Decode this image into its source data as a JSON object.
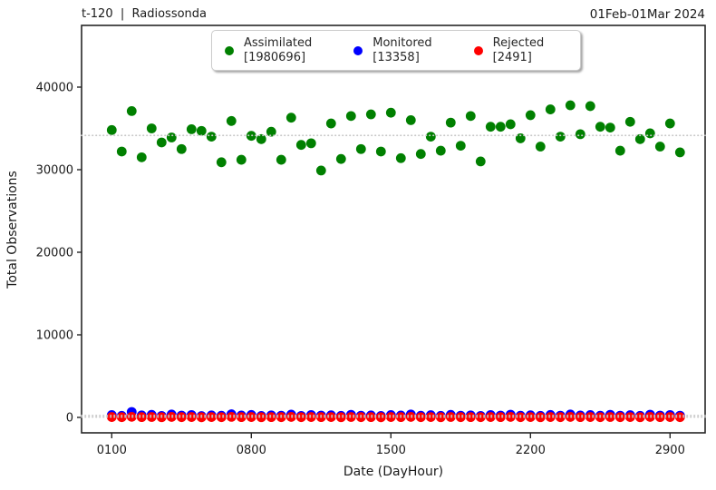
{
  "header": {
    "title": "t-120  |  Radiossonda",
    "date_range": "01Feb-01Mar 2024"
  },
  "legend": [
    {
      "name": "Assimilated",
      "count_label": "[1980696]",
      "color": "#008000"
    },
    {
      "name": "Monitored",
      "count_label": "[13358]",
      "color": "#0000ff"
    },
    {
      "name": "Rejected",
      "count_label": "[2491]",
      "color": "#ff0000"
    }
  ],
  "chart_data": {
    "type": "scatter",
    "title": "t-120 | Radiossonda",
    "subtitle": "01Feb-01Mar 2024",
    "xlabel": "Date (DayHour)",
    "ylabel": "Total Observations",
    "xtick_labels": [
      "0100",
      "0800",
      "1500",
      "2200",
      "2900"
    ],
    "ytick_values": [
      0,
      10000,
      20000,
      30000,
      40000
    ],
    "ytick_labels": [
      "0",
      "10000",
      "20000",
      "30000",
      "40000"
    ],
    "ylim": [
      -1870,
      47480
    ],
    "grid": false,
    "legend_position": "top-center",
    "mean_lines_color": "#c8c8c8",
    "categories": [
      "0100",
      "0112",
      "0200",
      "0212",
      "0300",
      "0312",
      "0400",
      "0412",
      "0500",
      "0512",
      "0600",
      "0612",
      "0700",
      "0712",
      "0800",
      "0812",
      "0900",
      "0912",
      "1000",
      "1012",
      "1100",
      "1112",
      "1200",
      "1212",
      "1300",
      "1312",
      "1400",
      "1412",
      "1500",
      "1512",
      "1600",
      "1612",
      "1700",
      "1712",
      "1800",
      "1812",
      "1900",
      "1912",
      "2000",
      "2012",
      "2100",
      "2112",
      "2200",
      "2212",
      "2300",
      "2312",
      "2400",
      "2412",
      "2500",
      "2512",
      "2600",
      "2612",
      "2700",
      "2712",
      "2800",
      "2812",
      "2900",
      "2912"
    ],
    "series": [
      {
        "name": "Assimilated",
        "total": 1980696,
        "mean": 34150,
        "color": "#008000",
        "values": [
          34800,
          32200,
          37100,
          31500,
          35000,
          33300,
          33900,
          32500,
          34900,
          34700,
          34000,
          30900,
          35900,
          31200,
          34100,
          33700,
          34600,
          31200,
          36300,
          33000,
          33200,
          29900,
          35600,
          31300,
          36500,
          32500,
          36700,
          32200,
          36900,
          31400,
          36000,
          31900,
          34000,
          32300,
          35700,
          32900,
          36500,
          31000,
          35200,
          35200,
          35500,
          33800,
          36600,
          32800,
          37300,
          34000,
          37800,
          34300,
          37700,
          35200,
          35100,
          32300,
          35800,
          33700,
          34400,
          32800,
          35600,
          32100
        ]
      },
      {
        "name": "Monitored",
        "total": 13358,
        "mean": 230,
        "color": "#0000ff",
        "values": [
          280,
          190,
          660,
          240,
          310,
          180,
          350,
          220,
          290,
          160,
          240,
          200,
          380,
          230,
          300,
          170,
          250,
          210,
          340,
          180,
          290,
          220,
          260,
          190,
          320,
          210,
          240,
          170,
          280,
          230,
          360,
          200,
          270,
          190,
          310,
          210,
          250,
          180,
          290,
          220,
          330,
          200,
          260,
          190,
          300,
          210,
          350,
          230,
          280,
          200,
          320,
          210,
          270,
          190,
          330,
          220,
          290,
          210
        ]
      },
      {
        "name": "Rejected",
        "total": 2491,
        "mean": 43,
        "color": "#ff0000",
        "values": [
          50,
          30,
          70,
          40,
          55,
          25,
          60,
          35,
          50,
          20,
          45,
          30,
          65,
          40,
          50,
          25,
          40,
          35,
          60,
          30,
          50,
          40,
          45,
          25,
          55,
          35,
          40,
          20,
          50,
          40,
          60,
          30,
          45,
          25,
          55,
          35,
          40,
          30,
          50,
          40,
          60,
          30,
          45,
          25,
          50,
          35,
          60,
          40,
          50,
          30,
          55,
          35,
          45,
          25,
          60,
          40,
          50,
          35
        ]
      }
    ]
  }
}
